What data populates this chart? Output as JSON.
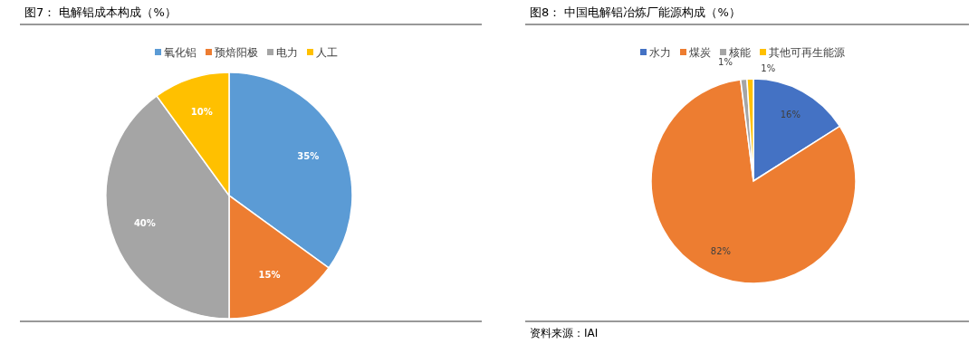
{
  "chart_data": [
    {
      "type": "pie",
      "title": "图7：  电解铝成本构成（%）",
      "categories": [
        "氧化铝",
        "预焙阳极",
        "电力",
        "人工"
      ],
      "values": [
        35,
        15,
        40,
        10
      ],
      "colors": [
        "#5b9bd5",
        "#ed7d31",
        "#a5a5a5",
        "#ffc000"
      ],
      "value_labels": [
        "35%",
        "15%",
        "40%",
        "10%"
      ],
      "legend": "top"
    },
    {
      "type": "pie",
      "title": "图8：  中国电解铝冶炼厂能源构成（%）",
      "categories": [
        "水力",
        "煤炭",
        "核能",
        "其他可再生能源"
      ],
      "values": [
        16,
        82,
        1,
        1
      ],
      "colors": [
        "#4472c4",
        "#ed7d31",
        "#a5a5a5",
        "#ffc000"
      ],
      "value_labels": [
        "16%",
        "82%",
        "1%",
        "1%"
      ],
      "legend": "top",
      "annotations": [
        "资料来源：IAI"
      ]
    }
  ]
}
